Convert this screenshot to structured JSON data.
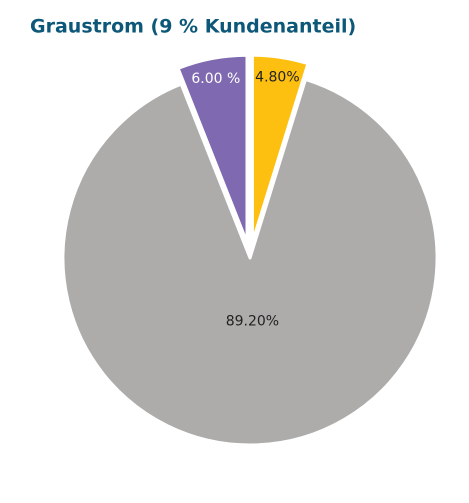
{
  "chart_data": {
    "type": "pie",
    "title": "Graustrom (9 % Kundenanteil)",
    "values": [
      4.8,
      89.2,
      6.0
    ],
    "value_labels": [
      "4.80%",
      "89.20%",
      "6.00 %"
    ],
    "colors": [
      "#fdc010",
      "#adacab",
      "#7f69b0"
    ]
  }
}
